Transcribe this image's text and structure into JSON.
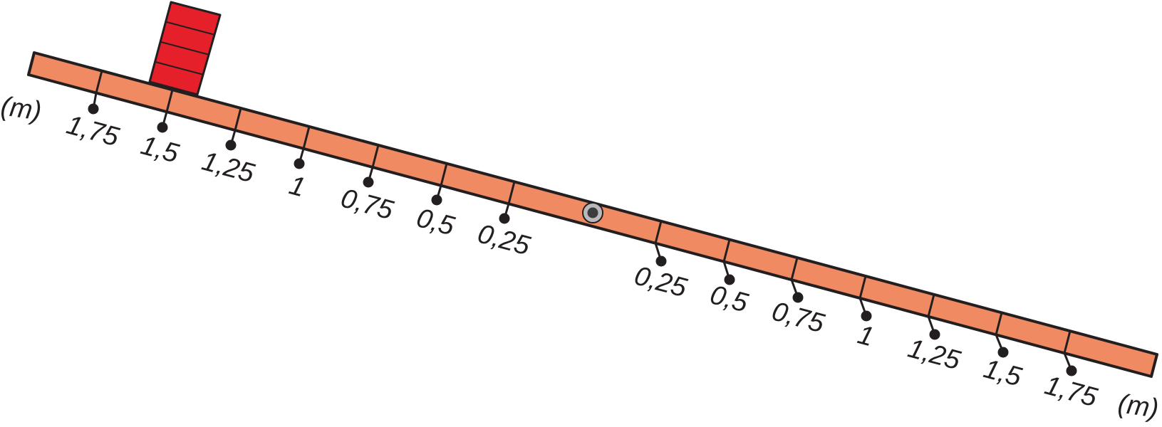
{
  "unit_label": "(m)",
  "left_labels": [
    "1,75",
    "1,5",
    "1,25",
    "1",
    "0,75",
    "0,5",
    "0,25"
  ],
  "right_labels": [
    "0,25",
    "0,5",
    "0,75",
    "1",
    "1,25",
    "1,5",
    "1,75"
  ],
  "colors": {
    "beam_fill": "#f08a62",
    "beam_stroke": "#231f20",
    "weight_fill": "#e5202a",
    "pivot_ring": "#b9b9bb",
    "pivot_center": "#3c3c3e",
    "hook": "#231f20"
  },
  "weight": {
    "stack_count": 4,
    "position_label": "1,5",
    "side": "left"
  }
}
